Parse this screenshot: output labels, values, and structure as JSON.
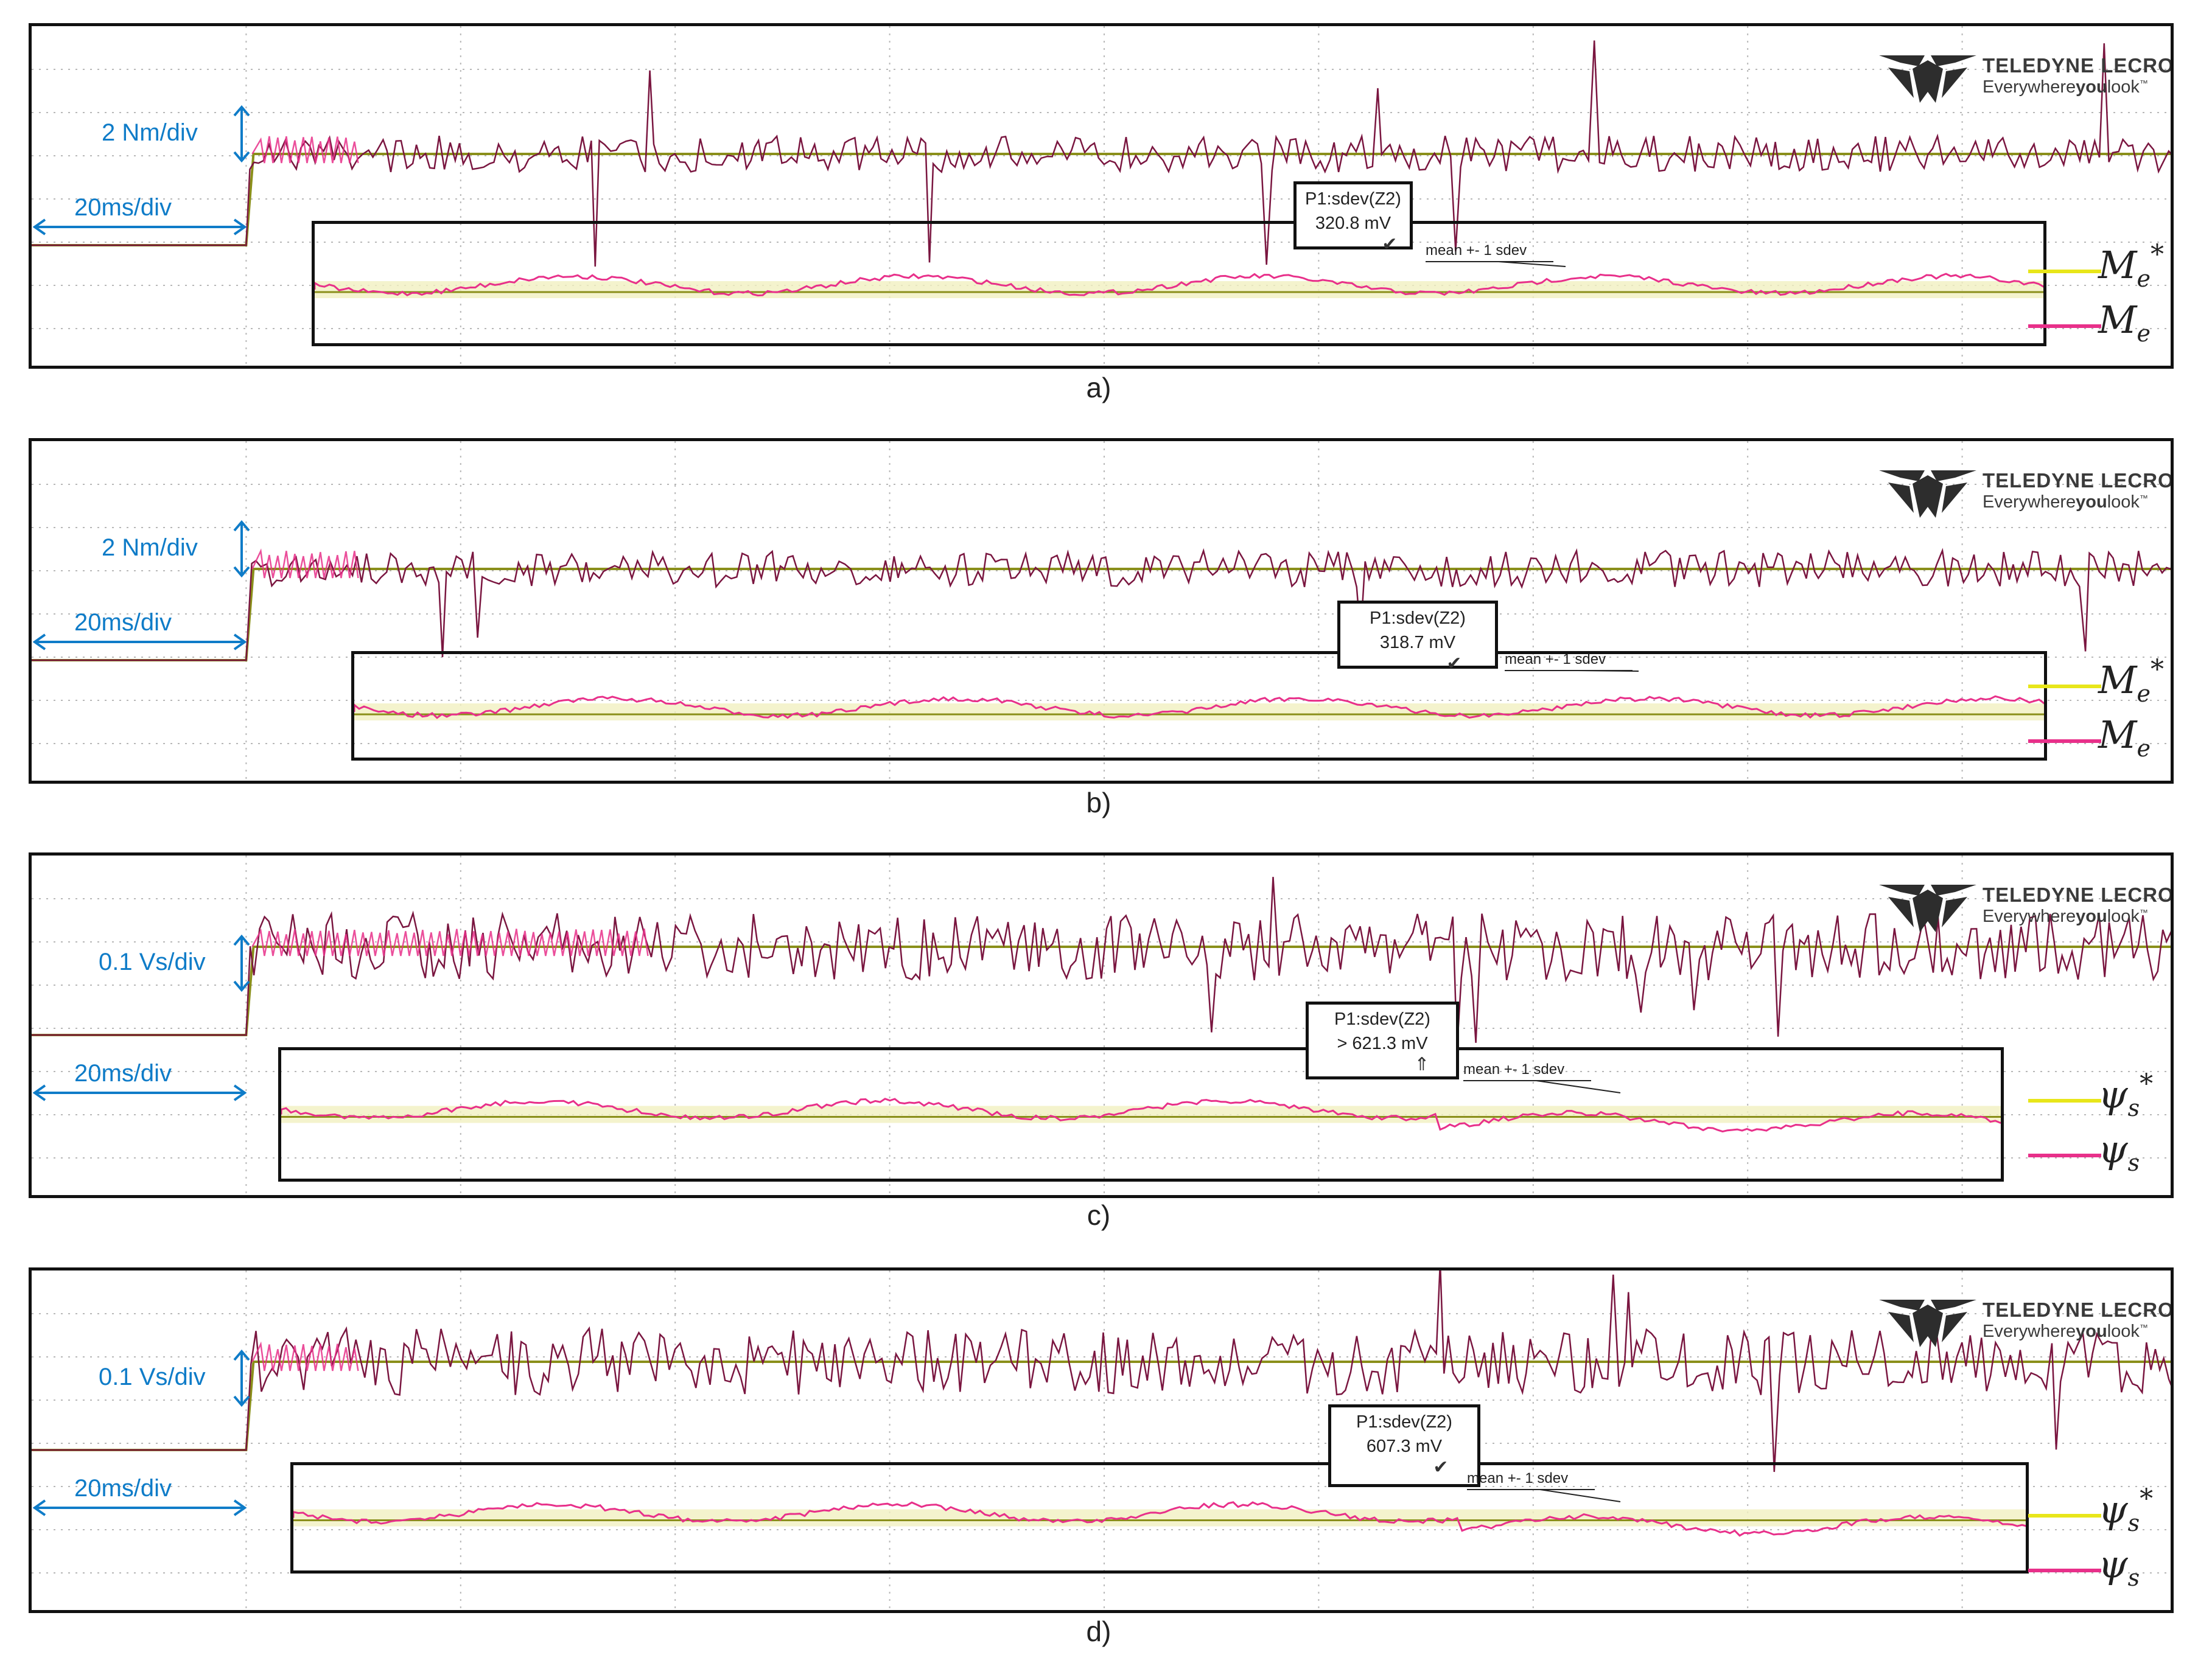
{
  "colors": {
    "ref": "#e8e61a",
    "meas": "#e8308a",
    "dark": "#7a1640",
    "olive": "#8a8f1a",
    "scale": "#0f7cc8",
    "grid": "#b8b8b8"
  },
  "brand": {
    "name": "TELEDYNE LECROY",
    "tag_pre": "Everywhere",
    "tag_bold": "you",
    "tag_post": "look",
    "tm": "™"
  },
  "panels": [
    {
      "caption": "a)",
      "vscale": "2 Nm/div",
      "hscale": "20ms/div",
      "measure": {
        "line1": "P1:sdev(Z2)",
        "line2": "320.8 mV",
        "status": "✔"
      },
      "annotation": "mean +- 1 sdev",
      "legend": [
        {
          "color": "ref",
          "symbol": "M",
          "sub": "e",
          "sup": "*"
        },
        {
          "color": "meas",
          "symbol": "M",
          "sub": "e",
          "sup": ""
        }
      ]
    },
    {
      "caption": "b)",
      "vscale": "2 Nm/div",
      "hscale": "20ms/div",
      "measure": {
        "line1": "P1:sdev(Z2)",
        "line2": "318.7 mV",
        "status": "✔"
      },
      "annotation": "mean +- 1 sdev",
      "legend": [
        {
          "color": "ref",
          "symbol": "M",
          "sub": "e",
          "sup": "*"
        },
        {
          "color": "meas",
          "symbol": "M",
          "sub": "e",
          "sup": ""
        }
      ]
    },
    {
      "caption": "c)",
      "vscale": "0.1 Vs/div",
      "hscale": "20ms/div",
      "measure": {
        "line1": "P1:sdev(Z2)",
        "line2": "> 621.3 mV",
        "status": "⇑"
      },
      "annotation": "mean +- 1 sdev",
      "legend": [
        {
          "color": "ref",
          "symbol": "ψ",
          "sub": "s",
          "sup": "*"
        },
        {
          "color": "meas",
          "symbol": "ψ",
          "sub": "s",
          "sup": ""
        }
      ]
    },
    {
      "caption": "d)",
      "vscale": "0.1 Vs/div",
      "hscale": "20ms/div",
      "measure": {
        "line1": "P1:sdev(Z2)",
        "line2": "607.3 mV",
        "status": "✔"
      },
      "annotation": "mean +- 1 sdev",
      "legend": [
        {
          "color": "ref",
          "symbol": "ψ",
          "sub": "s",
          "sup": "*"
        },
        {
          "color": "meas",
          "symbol": "ψ",
          "sub": "s",
          "sup": ""
        }
      ]
    }
  ],
  "chart_data": [
    {
      "type": "line",
      "grid": true,
      "x_divisions": 10,
      "y_divisions": 8,
      "series": [
        {
          "name": "M_e*",
          "color": "ref"
        },
        {
          "name": "M_e",
          "color": "meas"
        }
      ],
      "step_time_div": 1.0,
      "pre_level_div": -0.5,
      "post_level_div": 1.0,
      "ripple": "sawtooth",
      "inset": {
        "mean": "+- 1 sdev",
        "sdev_mV": 320.8
      }
    },
    {
      "type": "line",
      "grid": true,
      "x_divisions": 10,
      "y_divisions": 8,
      "series": [
        {
          "name": "M_e*",
          "color": "ref"
        },
        {
          "name": "M_e",
          "color": "meas"
        }
      ],
      "step_time_div": 1.0,
      "pre_level_div": -0.5,
      "post_level_div": 1.0,
      "ripple": "sawtooth",
      "inset": {
        "mean": "+- 1 sdev",
        "sdev_mV": 318.7
      }
    },
    {
      "type": "line",
      "grid": true,
      "x_divisions": 10,
      "y_divisions": 8,
      "series": [
        {
          "name": "ψs*",
          "color": "ref"
        },
        {
          "name": "ψs",
          "color": "meas"
        }
      ],
      "step_time_div": 1.0,
      "pre_level_div": -0.6,
      "post_level_div": 0.0,
      "ripple": "noisy",
      "inset": {
        "mean": "+- 1 sdev",
        "sdev_mV": 621.3
      }
    },
    {
      "type": "line",
      "grid": true,
      "x_divisions": 10,
      "y_divisions": 8,
      "series": [
        {
          "name": "ψs*",
          "color": "ref"
        },
        {
          "name": "ψs",
          "color": "meas"
        }
      ],
      "step_time_div": 1.0,
      "pre_level_div": -0.6,
      "post_level_div": 0.0,
      "ripple": "noisy",
      "inset": {
        "mean": "+- 1 sdev",
        "sdev_mV": 607.3
      }
    }
  ]
}
